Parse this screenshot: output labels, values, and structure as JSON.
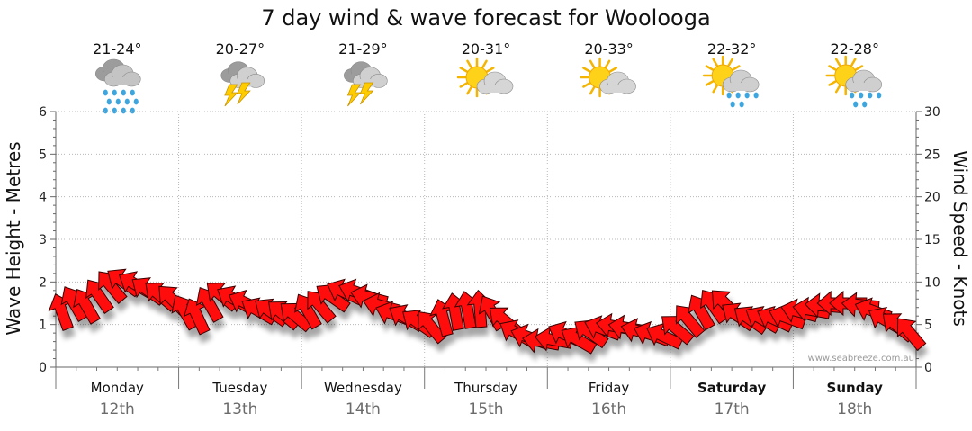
{
  "chart_data": {
    "type": "line",
    "title": "7 day wind & wave forecast for Woolooga",
    "ylabel_left": "Wave Height - Metres",
    "ylabel_right": "Wind Speed - Knots",
    "ylim_left": [
      0,
      6
    ],
    "ylim_right": [
      0,
      30
    ],
    "yticks_left": [
      "0",
      "1",
      "2",
      "3",
      "4",
      "5",
      "6"
    ],
    "yticks_right": [
      "0",
      "5",
      "10",
      "15",
      "20",
      "25",
      "30"
    ],
    "watermark": "www.seabreeze.com.au",
    "days": [
      {
        "name": "Monday",
        "date": "12th",
        "temp": "21-24°",
        "weather": "rain-cloud-icon",
        "bold": false
      },
      {
        "name": "Tuesday",
        "date": "13th",
        "temp": "20-27°",
        "weather": "thunderstorm-icon",
        "bold": false
      },
      {
        "name": "Wednesday",
        "date": "14th",
        "temp": "21-29°",
        "weather": "thunderstorm-icon",
        "bold": false
      },
      {
        "name": "Thursday",
        "date": "15th",
        "temp": "20-31°",
        "weather": "partly-sunny-icon",
        "bold": false
      },
      {
        "name": "Friday",
        "date": "16th",
        "temp": "20-33°",
        "weather": "partly-sunny-icon",
        "bold": false
      },
      {
        "name": "Saturday",
        "date": "17th",
        "temp": "22-32°",
        "weather": "sun-showers-icon",
        "bold": true
      },
      {
        "name": "Sunday",
        "date": "18th",
        "temp": "22-28°",
        "weather": "sun-showers-icon",
        "bold": true
      }
    ],
    "wind_series": {
      "name": "Wind speed (knots)",
      "x_days": [
        0.0,
        0.1,
        0.2,
        0.3,
        0.4,
        0.5,
        0.6,
        0.7,
        0.8,
        0.9,
        1.0,
        1.1,
        1.2,
        1.3,
        1.4,
        1.5,
        1.6,
        1.7,
        1.8,
        1.9,
        2.0,
        2.1,
        2.2,
        2.3,
        2.4,
        2.5,
        2.6,
        2.7,
        2.8,
        2.9,
        3.0,
        3.1,
        3.2,
        3.3,
        3.4,
        3.5,
        3.6,
        3.7,
        3.8,
        3.9,
        4.0,
        4.1,
        4.2,
        4.3,
        4.4,
        4.5,
        4.6,
        4.7,
        4.8,
        4.9,
        5.0,
        5.1,
        5.2,
        5.3,
        5.4,
        5.5,
        5.6,
        5.7,
        5.8,
        5.9,
        6.0,
        6.1,
        6.2,
        6.3,
        6.4,
        6.5,
        6.6,
        6.7,
        6.8,
        6.9
      ],
      "values": [
        6.5,
        7.5,
        7.2,
        8.4,
        9.5,
        10.0,
        9.7,
        9.0,
        8.4,
        7.9,
        6.5,
        6.0,
        7.4,
        8.4,
        8.0,
        7.5,
        6.6,
        6.5,
        6.2,
        6.0,
        6.6,
        7.2,
        8.2,
        8.8,
        8.8,
        8.2,
        7.2,
        6.2,
        5.8,
        5.2,
        4.8,
        5.8,
        6.5,
        6.7,
        6.8,
        6.4,
        5.5,
        4.0,
        3.5,
        3.0,
        3.2,
        3.8,
        3.2,
        4.0,
        4.5,
        4.8,
        4.6,
        4.2,
        3.8,
        3.6,
        4.5,
        5.5,
        6.5,
        7.2,
        7.4,
        6.0,
        5.6,
        5.6,
        5.6,
        5.8,
        6.5,
        6.7,
        7.2,
        7.5,
        7.5,
        7.3,
        6.6,
        5.5,
        4.8,
        4.0
      ],
      "directions_deg": [
        160,
        150,
        150,
        145,
        140,
        125,
        120,
        125,
        130,
        135,
        150,
        155,
        150,
        130,
        120,
        115,
        120,
        125,
        130,
        130,
        150,
        140,
        125,
        115,
        110,
        105,
        105,
        110,
        120,
        125,
        140,
        165,
        170,
        170,
        175,
        150,
        130,
        120,
        110,
        100,
        100,
        115,
        120,
        125,
        110,
        100,
        100,
        105,
        110,
        115,
        130,
        140,
        150,
        145,
        135,
        125,
        125,
        120,
        115,
        110,
        105,
        100,
        95,
        90,
        90,
        95,
        110,
        120,
        130,
        140
      ]
    }
  }
}
